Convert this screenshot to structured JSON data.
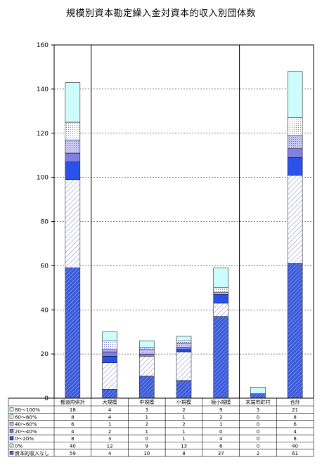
{
  "chart_data": {
    "type": "bar",
    "stacked": true,
    "title": "規模別資本勘定繰入金対資本的収入別団体数",
    "ylim": [
      0,
      160
    ],
    "yticks": [
      0,
      20,
      40,
      60,
      80,
      100,
      120,
      140,
      160
    ],
    "grid": "horizontal-dashed",
    "legend": "table-below",
    "categories": [
      "都道府県計",
      "大規模",
      "中規模",
      "小規模",
      "極小規模",
      "末端市町村",
      "合計"
    ],
    "series": [
      {
        "name": "資本的収入なし",
        "values": [
          59,
          4,
          10,
          8,
          37,
          2,
          61
        ],
        "color": "#3a5ad8",
        "pattern": "hatch-dense"
      },
      {
        "name": "0%",
        "values": [
          40,
          12,
          9,
          13,
          6,
          0,
          40
        ],
        "color": "#ffffff",
        "pattern": "hatch-light"
      },
      {
        "name": "0〜20%",
        "values": [
          8,
          3,
          0,
          1,
          4,
          0,
          8
        ],
        "color": "#2a52e8",
        "pattern": "solid"
      },
      {
        "name": "20〜40%",
        "values": [
          4,
          2,
          1,
          1,
          0,
          0,
          4
        ],
        "color": "#8080e0",
        "pattern": "solid"
      },
      {
        "name": "40〜60%",
        "values": [
          6,
          1,
          2,
          2,
          1,
          0,
          6
        ],
        "color": "#c8c8f4",
        "pattern": "dots"
      },
      {
        "name": "60〜80%",
        "values": [
          8,
          4,
          1,
          1,
          2,
          0,
          8
        ],
        "color": "#ffffff",
        "pattern": "dots"
      },
      {
        "name": "80〜100%",
        "values": [
          18,
          4,
          3,
          2,
          9,
          3,
          21
        ],
        "color": "#ccfcfc",
        "pattern": "solid"
      }
    ],
    "table_order": [
      "80〜100%",
      "60〜80%",
      "40〜60%",
      "20〜40%",
      "0〜20%",
      "0%",
      "資本的収入なし"
    ]
  }
}
